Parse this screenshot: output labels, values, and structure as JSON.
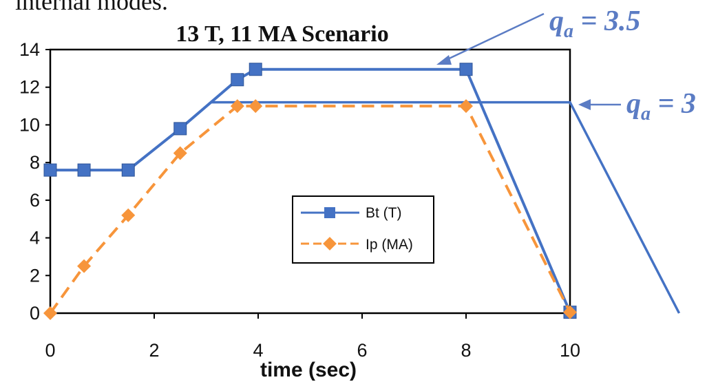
{
  "top_caption": "internal modes.",
  "chart_data": {
    "type": "line",
    "title": "13 T, 11 MA Scenario",
    "xlabel": "time (sec)",
    "ylabel": "",
    "xlim": [
      0,
      10
    ],
    "ylim": [
      0,
      14
    ],
    "x_ticks": [
      0,
      2,
      4,
      6,
      8,
      10
    ],
    "y_ticks": [
      0,
      2,
      4,
      6,
      8,
      10,
      12,
      14
    ],
    "grid": false,
    "legend_position": "center-right",
    "series": [
      {
        "name": "Bt (T)",
        "color": "#4472c4",
        "marker": "square",
        "line_style": "solid",
        "x": [
          0,
          0.65,
          1.5,
          2.5,
          3.6,
          3.95,
          8.0,
          10.0
        ],
        "y": [
          7.6,
          7.6,
          7.6,
          9.8,
          12.4,
          12.95,
          12.95,
          0.05
        ]
      },
      {
        "name": "Ip (MA)",
        "color": "#f7953b",
        "marker": "diamond",
        "line_style": "dashed",
        "x": [
          0,
          0.65,
          1.5,
          2.5,
          3.6,
          3.95,
          8.0,
          10.0
        ],
        "y": [
          0.0,
          2.5,
          5.2,
          8.5,
          11.0,
          11.0,
          11.0,
          0.05
        ]
      }
    ],
    "annotations": [
      {
        "symbol": "q",
        "subscript": "a",
        "text": " = 3.5",
        "color": "#5b7cc4"
      },
      {
        "symbol": "q",
        "subscript": "a",
        "text": " = 3",
        "color": "#5b7cc4"
      }
    ],
    "overlay_line": {
      "color": "#4472c4",
      "x": [
        3.1,
        10.0,
        12.1
      ],
      "y": [
        11.2,
        11.2,
        0.0
      ]
    }
  }
}
